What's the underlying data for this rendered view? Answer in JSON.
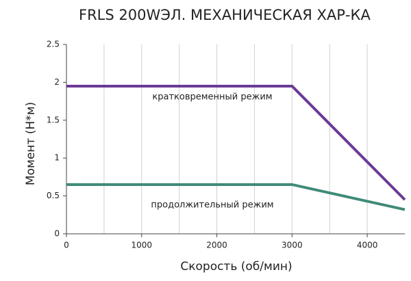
{
  "chart_data": {
    "type": "line",
    "title": "FRLS 200WЭЛ. МЕХАНИЧЕСКАЯ ХАР-КА",
    "x_label": "Скорость (об/мин)",
    "y_label": "Момент (Н*м)",
    "x": [
      0,
      3000,
      4500
    ],
    "series": [
      {
        "name": "кратковременный режим",
        "color": "#6b3a96",
        "values": [
          1.95,
          1.95,
          0.45
        ]
      },
      {
        "name": "продолжительный режим",
        "color": "#3f8a78",
        "values": [
          0.65,
          0.65,
          0.32
        ]
      }
    ],
    "xlim": [
      0,
      4500
    ],
    "ylim": [
      0,
      2.5
    ],
    "xticks": [
      0,
      1000,
      2000,
      3000,
      4000
    ],
    "yticks": [
      0,
      0.5,
      1,
      1.5,
      2,
      2.5
    ],
    "x_minor_grid": [
      500,
      1500,
      2500,
      3500
    ],
    "grid": true
  }
}
